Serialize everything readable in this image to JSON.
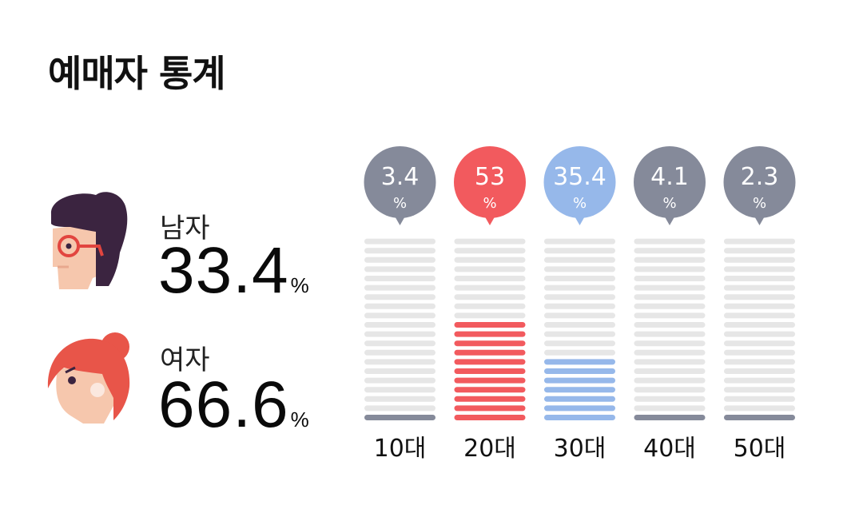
{
  "title": "예매자 통계",
  "gender": {
    "male": {
      "label": "남자",
      "value": "33.4",
      "unit": "%"
    },
    "female": {
      "label": "여자",
      "value": "66.6",
      "unit": "%"
    }
  },
  "colors": {
    "default": "#858a9a",
    "highlight_20": "#f25a5e",
    "highlight_30": "#96b8ea",
    "track": "#e6e6e6"
  },
  "chart_data": {
    "type": "bar",
    "categories": [
      "10대",
      "20대",
      "30대",
      "40대",
      "50대"
    ],
    "values": [
      3.4,
      53,
      35.4,
      4.1,
      2.3
    ],
    "value_unit": "%",
    "bar_colors": [
      "#858a9a",
      "#f25a5e",
      "#96b8ea",
      "#858a9a",
      "#858a9a"
    ],
    "ylim": [
      0,
      100
    ],
    "grid": false
  }
}
